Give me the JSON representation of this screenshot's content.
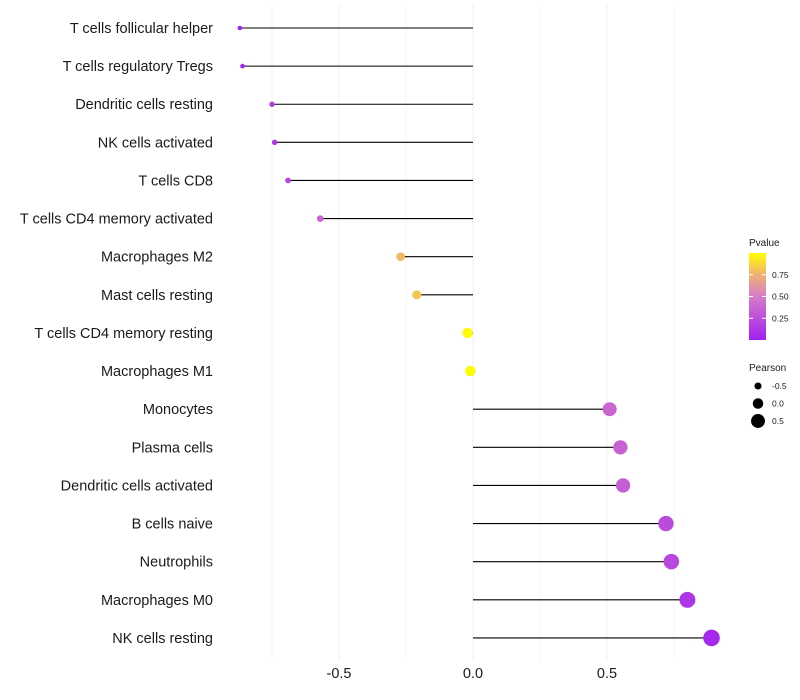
{
  "chart_data": {
    "type": "lollipop",
    "title": "",
    "xlabel": "",
    "ylabel": "",
    "xlim": [
      -0.88,
      0.9
    ],
    "x_ticks": [
      -0.5,
      0.0,
      0.5
    ],
    "x_tick_labels": [
      "-0.5",
      "0.0",
      "0.5"
    ],
    "grid": true,
    "legend_position": "right",
    "categories": [
      "T cells follicular helper",
      "T cells regulatory  Tregs",
      "Dendritic cells resting",
      "NK cells activated",
      "T cells CD8",
      "T cells CD4 memory activated",
      "Macrophages M2",
      "Mast cells resting",
      "T cells CD4 memory resting",
      "Macrophages M1",
      "Monocytes",
      "Plasma cells",
      "Dendritic cells activated",
      "B cells naive",
      "Neutrophils",
      "Macrophages M0",
      "NK cells resting"
    ],
    "pearson": [
      -0.87,
      -0.86,
      -0.75,
      -0.74,
      -0.69,
      -0.57,
      -0.27,
      -0.21,
      -0.02,
      -0.01,
      0.51,
      0.55,
      0.56,
      0.72,
      0.74,
      0.8,
      0.89
    ],
    "pvalue": [
      0.02,
      0.03,
      0.15,
      0.13,
      0.22,
      0.38,
      0.78,
      0.82,
      0.99,
      0.99,
      0.38,
      0.36,
      0.33,
      0.24,
      0.22,
      0.12,
      0.05
    ],
    "colors": {
      "low": "#a020f0",
      "mid": "#e8a0c0",
      "high": "#ffff00",
      "stem": "#000000",
      "grid": "#ebebeb"
    },
    "legend": {
      "pvalue_title": "Pvalue",
      "pvalue_breaks": [
        0.75,
        0.5,
        0.25
      ],
      "pvalue_labels": [
        "0.75",
        "0.50",
        "0.25"
      ],
      "pearson_title": "Pearson",
      "pearson_breaks": [
        -0.5,
        0.0,
        0.5
      ],
      "pearson_labels": [
        "-0.5",
        "0.0",
        "0.5"
      ]
    }
  }
}
